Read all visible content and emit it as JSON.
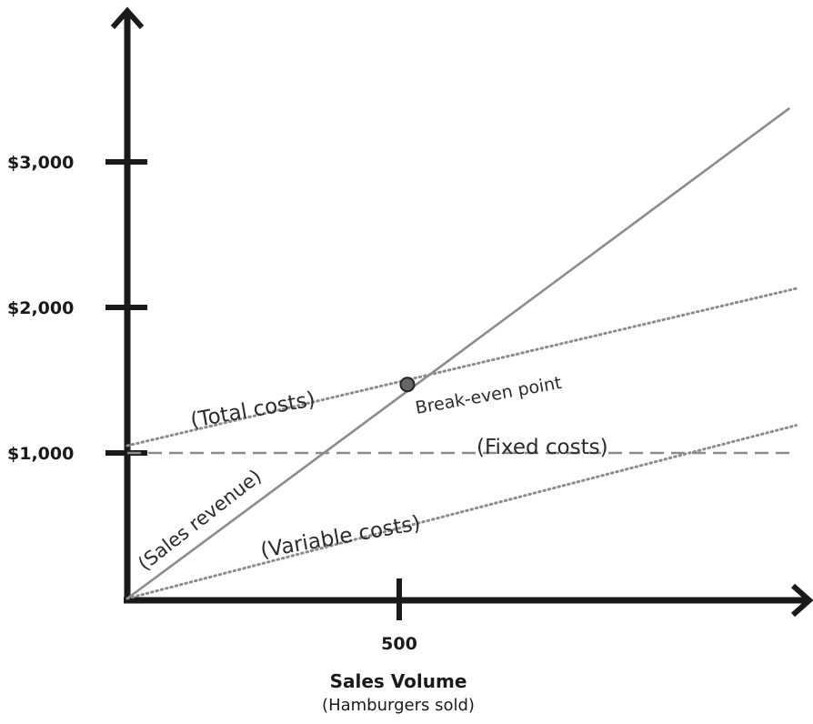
{
  "chart_data": {
    "type": "line",
    "title": "",
    "xlabel": "Sales Volume",
    "xlabel_sub": "(Hamburgers sold)",
    "ylabel": "",
    "x_ticks": [
      {
        "value": 500,
        "label": "500"
      }
    ],
    "y_ticks": [
      {
        "value": 1000,
        "label": "$1,000"
      },
      {
        "value": 2000,
        "label": "$2,000"
      },
      {
        "value": 3000,
        "label": "$3,000"
      }
    ],
    "xlim": [
      0,
      1250
    ],
    "ylim": [
      0,
      3600
    ],
    "grid": false,
    "series": [
      {
        "name": "(Sales revenue)",
        "style": "solid",
        "color": "#8c8c8c",
        "x": [
          0,
          1218
        ],
        "y": [
          0,
          3370
        ]
      },
      {
        "name": "(Total costs)",
        "style": "dotted",
        "color": "#8c8c8c",
        "x": [
          0,
          1230
        ],
        "y": [
          1050,
          2130
        ]
      },
      {
        "name": "(Fixed costs)",
        "style": "dashed",
        "color": "#8c8c8c",
        "x": [
          0,
          1230
        ],
        "y": [
          1000,
          1000
        ]
      },
      {
        "name": "(Variable costs)",
        "style": "dotted",
        "color": "#8c8c8c",
        "x": [
          0,
          1230
        ],
        "y": [
          0,
          1190
        ]
      }
    ],
    "annotations": [
      {
        "label": "Break-even point",
        "x": 515,
        "y": 1470
      }
    ]
  }
}
